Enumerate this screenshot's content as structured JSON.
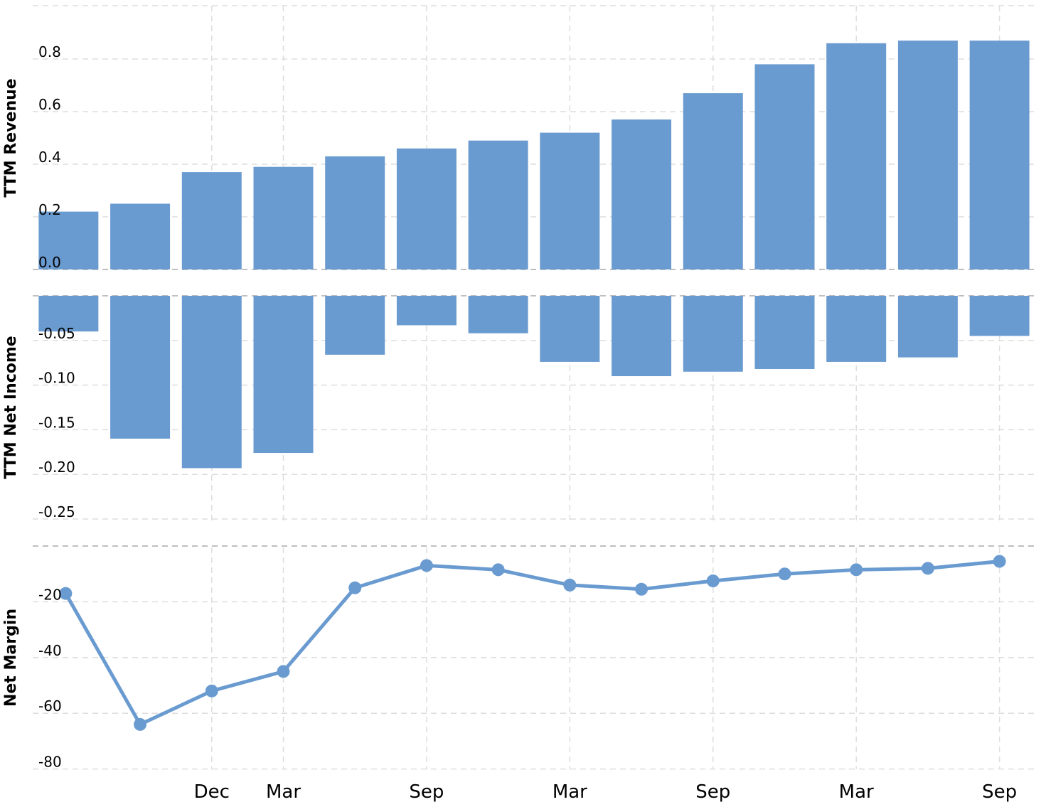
{
  "colors": {
    "bar": "#6a9bd0",
    "line": "#6a9bd0",
    "grid": "#dddddd"
  },
  "chart_data": [
    {
      "type": "bar",
      "ylabel": "TTM Revenue",
      "ylim": [
        -0.01,
        1.0
      ],
      "yticks": [
        0.0,
        0.2,
        0.4,
        0.6,
        0.8
      ],
      "ytick_labels": [
        "0.0",
        "0.2",
        "0.4",
        "0.6",
        "0.8"
      ],
      "values": [
        0.22,
        0.25,
        0.37,
        0.39,
        0.43,
        0.46,
        0.49,
        0.52,
        0.57,
        0.67,
        0.78,
        0.86,
        0.87,
        0.87
      ]
    },
    {
      "type": "bar",
      "ylabel": "TTM Net Income",
      "ylim": [
        -0.25,
        0.0
      ],
      "yticks": [
        -0.05,
        -0.1,
        -0.15,
        -0.2,
        -0.25
      ],
      "ytick_labels": [
        "-0.05",
        "-0.10",
        "-0.15",
        "-0.20",
        "-0.25"
      ],
      "values": [
        -0.04,
        -0.16,
        -0.193,
        -0.176,
        -0.066,
        -0.033,
        -0.042,
        -0.074,
        -0.09,
        -0.085,
        -0.082,
        -0.074,
        -0.069,
        -0.045
      ]
    },
    {
      "type": "line",
      "ylabel": "Net Margin",
      "ylim": [
        -80,
        0
      ],
      "yticks": [
        -20,
        -40,
        -60,
        -80
      ],
      "ytick_labels": [
        "-20",
        "-40",
        "-60",
        "-80"
      ],
      "values": [
        -17,
        -64,
        -52,
        -45,
        -15,
        -7,
        -8.5,
        -14,
        -15.5,
        -12.5,
        -10,
        -8.5,
        -8,
        -5.5
      ]
    }
  ],
  "x_axis": {
    "labels": [
      "Dec",
      "Mar",
      "Sep",
      "Mar",
      "Sep",
      "Mar",
      "Sep"
    ],
    "label_index": [
      2,
      3,
      5,
      7,
      9,
      11,
      13
    ]
  }
}
